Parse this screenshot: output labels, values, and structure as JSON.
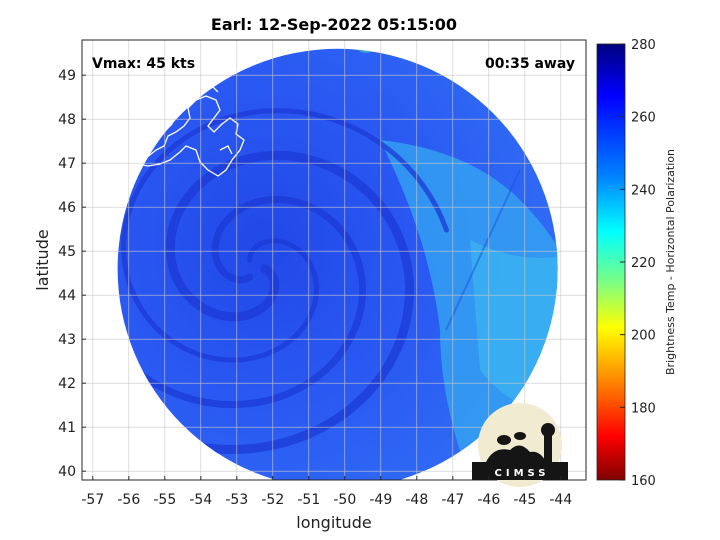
{
  "figure": {
    "title": "Earl: 12-Sep-2022 05:15:00",
    "vmax_text": "Vmax: 45 kts",
    "time_away_text": "00:35 away",
    "logo_text": "CIMSS"
  },
  "map": {
    "x_label": "longitude",
    "y_label": "latitude",
    "lon_ticks": [
      "-57",
      "-56",
      "-55",
      "-54",
      "-53",
      "-52",
      "-51",
      "-50",
      "-49",
      "-48",
      "-47",
      "-46",
      "-45",
      "-44"
    ],
    "lat_ticks": [
      "40",
      "41",
      "42",
      "43",
      "44",
      "45",
      "46",
      "47",
      "48",
      "49"
    ],
    "lon_range": [
      -57.3,
      -43.3
    ],
    "lat_range": [
      39.8,
      49.8
    ],
    "storm_center": {
      "lon": -52.5,
      "lat": 44.6
    },
    "swath_center": {
      "lon": -50.2,
      "lat": 44.6
    },
    "swath_radius_deg_lat": 5.0,
    "grid": true,
    "coastline_color": "#ffffff"
  },
  "colorbar": {
    "label": "Brightness Temp - Horizontal Polarization",
    "ticks": [
      "280",
      "260",
      "240",
      "220",
      "200",
      "180",
      "160"
    ],
    "range": [
      160,
      280
    ],
    "colormap": "jet-reversed",
    "colors": [
      "#00007f",
      "#0000ff",
      "#007fff",
      "#00ffff",
      "#7fff7f",
      "#ffff00",
      "#ff7f00",
      "#ff0000",
      "#7f0000"
    ]
  },
  "colors": {
    "dominant_field": "#2a55f0",
    "bands": "#1f3fd8",
    "warm_spot": "#e8d020"
  }
}
